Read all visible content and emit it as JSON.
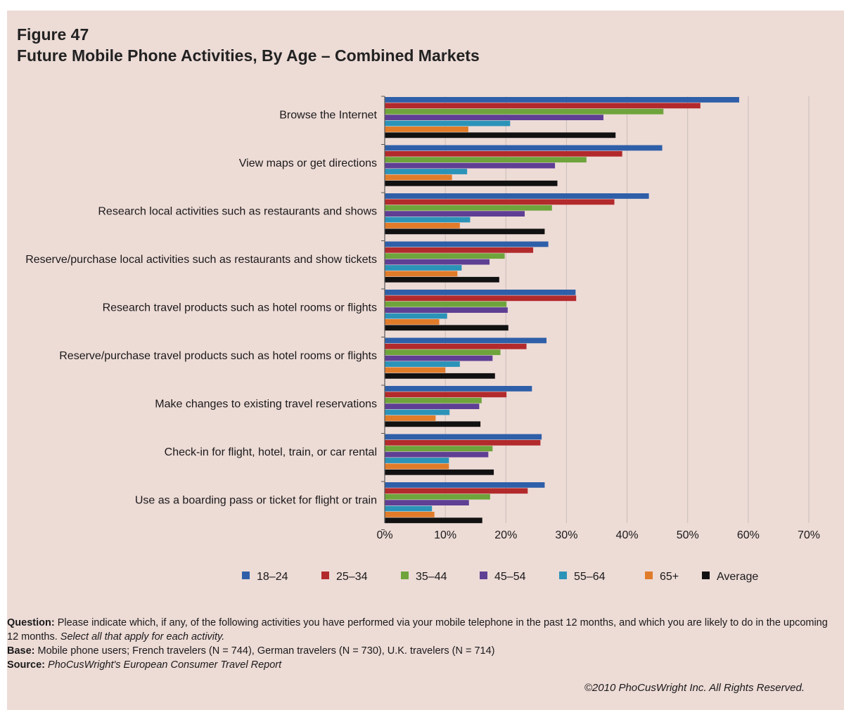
{
  "header": {
    "figure_label": "Figure 47",
    "title": "Future Mobile Phone Activities, By Age – Combined Markets"
  },
  "chart_data": {
    "type": "bar",
    "orientation": "horizontal",
    "categories": [
      "Browse the Internet",
      "View maps or get directions",
      "Research local activities such as restaurants and shows",
      "Reserve/purchase local activities such as restaurants and show tickets",
      "Research travel products such as hotel rooms or flights",
      "Reserve/purchase travel products such as hotel rooms or flights",
      "Make changes to existing travel reservations",
      "Check-in for flight, hotel, train, or car rental",
      "Use as a boarding pass or ticket for flight or train"
    ],
    "series": [
      {
        "name": "18–24",
        "color": "#2e5fa8",
        "values": [
          58.5,
          45.8,
          43.6,
          27.0,
          31.5,
          26.7,
          24.3,
          25.9,
          26.4
        ]
      },
      {
        "name": "25–34",
        "color": "#b22a2c",
        "values": [
          52.1,
          39.2,
          37.9,
          24.5,
          31.6,
          23.4,
          20.1,
          25.7,
          23.6
        ]
      },
      {
        "name": "35–44",
        "color": "#6ea43b",
        "values": [
          46.0,
          33.3,
          27.6,
          19.8,
          20.1,
          19.1,
          16.0,
          17.8,
          17.4
        ]
      },
      {
        "name": "45–54",
        "color": "#5f3f94",
        "values": [
          36.1,
          28.1,
          23.1,
          17.3,
          20.3,
          17.8,
          15.6,
          17.1,
          13.9
        ]
      },
      {
        "name": "55–64",
        "color": "#2b93b8",
        "values": [
          20.7,
          13.6,
          14.1,
          12.7,
          10.3,
          12.4,
          10.7,
          10.6,
          7.8
        ]
      },
      {
        "name": "65+",
        "color": "#e07b2a",
        "values": [
          13.8,
          11.1,
          12.4,
          12.0,
          9.0,
          10.0,
          8.4,
          10.6,
          8.2
        ]
      },
      {
        "name": "Average",
        "color": "#111111",
        "values": [
          38.1,
          28.5,
          26.4,
          18.9,
          20.4,
          18.2,
          15.8,
          18.0,
          16.1
        ]
      }
    ],
    "xlim": [
      0,
      70
    ],
    "xticks": [
      "0%",
      "10%",
      "20%",
      "30%",
      "40%",
      "50%",
      "60%",
      "70%"
    ],
    "grid": true,
    "legend_position": "bottom"
  },
  "notes": {
    "question_label": "Question:",
    "question_text": "Please indicate which, if any, of the following activities you have performed via your mobile telephone in the past 12 months, and which you are likely to do in the upcoming 12 months.",
    "question_italic": "Select all that apply for each activity.",
    "base_label": "Base:",
    "base_text": "Mobile phone users; French travelers (N = 744), German travelers (N = 730), U.K. travelers (N = 714)",
    "source_label": "Source:",
    "source_text": "PhoCusWright's European Consumer Travel Report",
    "copyright": "©2010 PhoCusWright Inc. All Rights Reserved."
  }
}
